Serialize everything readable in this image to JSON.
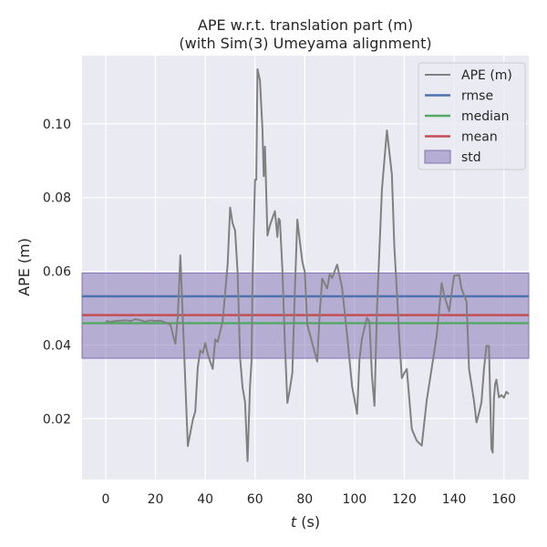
{
  "chart_data": {
    "type": "line",
    "title_line1": "APE w.r.t. translation part (m)",
    "title_line2": "(with Sim(3) Umeyama alignment)",
    "xlabel_italic": "t",
    "xlabel_rest": " (s)",
    "ylabel": "APE (m)",
    "xlim": [
      -9.5,
      170
    ],
    "ylim": [
      0.0035,
      0.1185
    ],
    "xticks": [
      0,
      20,
      40,
      60,
      80,
      100,
      120,
      140,
      160
    ],
    "xtick_labels": [
      "0",
      "20",
      "40",
      "60",
      "80",
      "100",
      "120",
      "140",
      "160"
    ],
    "yticks": [
      0.02,
      0.04,
      0.06,
      0.08,
      0.1
    ],
    "ytick_labels": [
      "0.02",
      "0.04",
      "0.06",
      "0.08",
      "0.10"
    ],
    "grid": true,
    "legend_position": "top-right",
    "background": "#eaeaf2",
    "series": [
      {
        "name": "APE (m)",
        "color": "#808080",
        "x": [
          0,
          2,
          4,
          6,
          8,
          10,
          12,
          14,
          16,
          18,
          20,
          22,
          24,
          26,
          27,
          28,
          29,
          30,
          31,
          33,
          35,
          36,
          37,
          38,
          39,
          40,
          41,
          43,
          44,
          45,
          47,
          49,
          50,
          51,
          52,
          53,
          54,
          55,
          56,
          57,
          58,
          58.6,
          59,
          60,
          60.5,
          61,
          62,
          63,
          63.5,
          64,
          65,
          66,
          68,
          69,
          69.5,
          70,
          71,
          72,
          73,
          74,
          75,
          76,
          77,
          78,
          79,
          80,
          81,
          83,
          85,
          86,
          87,
          88,
          89,
          90,
          91,
          93,
          95,
          97,
          99,
          100,
          101,
          102,
          103,
          105,
          106,
          107,
          108,
          109,
          111,
          113,
          115,
          116,
          117,
          118,
          119,
          120,
          121,
          123,
          125,
          127,
          129,
          131,
          133,
          134,
          135,
          136,
          138,
          139,
          140,
          142,
          143,
          145,
          146,
          148,
          149,
          150,
          151,
          152,
          153,
          154,
          155,
          155.5,
          156,
          156.5,
          157,
          158,
          159,
          160,
          161,
          162
        ],
        "values": [
          0.0465,
          0.0463,
          0.0465,
          0.0466,
          0.0467,
          0.0465,
          0.047,
          0.0467,
          0.0463,
          0.0467,
          0.0465,
          0.0466,
          0.0461,
          0.0455,
          0.0428,
          0.0403,
          0.048,
          0.0643,
          0.047,
          0.0126,
          0.0197,
          0.022,
          0.034,
          0.0385,
          0.0378,
          0.0405,
          0.0375,
          0.0335,
          0.0415,
          0.0408,
          0.0465,
          0.0618,
          0.0773,
          0.073,
          0.071,
          0.0598,
          0.0365,
          0.0285,
          0.0245,
          0.0085,
          0.029,
          0.0355,
          0.0575,
          0.0848,
          0.0848,
          0.1148,
          0.1117,
          0.0985,
          0.0858,
          0.0938,
          0.0697,
          0.0725,
          0.0763,
          0.0693,
          0.0743,
          0.0738,
          0.0605,
          0.0405,
          0.0243,
          0.028,
          0.0324,
          0.0545,
          0.074,
          0.0682,
          0.0627,
          0.0598,
          0.0456,
          0.0405,
          0.0355,
          0.0486,
          0.058,
          0.0567,
          0.0553,
          0.0592,
          0.0582,
          0.0618,
          0.0555,
          0.0427,
          0.0288,
          0.0252,
          0.0213,
          0.0363,
          0.0418,
          0.0474,
          0.0463,
          0.0315,
          0.0235,
          0.0495,
          0.0822,
          0.0982,
          0.0862,
          0.0665,
          0.0545,
          0.0415,
          0.031,
          0.0324,
          0.0335,
          0.0172,
          0.014,
          0.0127,
          0.025,
          0.0337,
          0.0425,
          0.0495,
          0.0568,
          0.0535,
          0.0491,
          0.0541,
          0.0588,
          0.059,
          0.0552,
          0.0518,
          0.0335,
          0.0248,
          0.019,
          0.0215,
          0.0245,
          0.0335,
          0.0398,
          0.0397,
          0.0118,
          0.0108,
          0.0255,
          0.0295,
          0.0306,
          0.0258,
          0.0264,
          0.0257,
          0.0273,
          0.0267
        ]
      },
      {
        "name": "rmse",
        "color": "#4c72b0",
        "value": 0.0532
      },
      {
        "name": "median",
        "color": "#55a868",
        "value": 0.0459
      },
      {
        "name": "mean",
        "color": "#c44e52",
        "value": 0.0481
      },
      {
        "name": "std",
        "color": "#8172b2",
        "range": [
          0.0364,
          0.0595
        ]
      }
    ]
  }
}
